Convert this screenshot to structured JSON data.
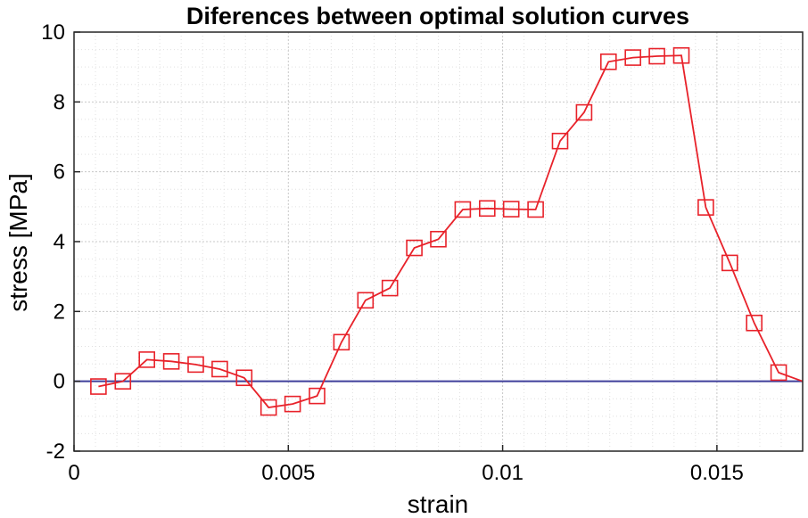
{
  "chart_data": {
    "type": "line",
    "title": "Diferences between optimal solution curves",
    "xlabel": "strain",
    "ylabel": "stress [MPa]",
    "xlim": [
      0,
      0.017
    ],
    "ylim": [
      -2,
      10
    ],
    "x_ticks": [
      0,
      0.005,
      0.01,
      0.015
    ],
    "x_tick_labels": [
      "0",
      "0.005",
      "0.01",
      "0.015"
    ],
    "y_ticks": [
      -2,
      0,
      2,
      4,
      6,
      8,
      10
    ],
    "y_tick_labels": [
      "-2",
      "0",
      "2",
      "4",
      "6",
      "8",
      "10"
    ],
    "grid": true,
    "minor_grid": true,
    "baseline": {
      "y": 0,
      "color": "#3f3f9a"
    },
    "series": [
      {
        "color": "#e8222a",
        "marker": "square",
        "points": [
          [
            0.00057,
            -0.15
          ],
          [
            0.00114,
            0.0
          ],
          [
            0.0017,
            0.62
          ],
          [
            0.00227,
            0.57
          ],
          [
            0.00284,
            0.48
          ],
          [
            0.0034,
            0.35
          ],
          [
            0.00397,
            0.1
          ],
          [
            0.00454,
            -0.75
          ],
          [
            0.0051,
            -0.65
          ],
          [
            0.00567,
            -0.42
          ],
          [
            0.00624,
            1.12
          ],
          [
            0.0068,
            2.32
          ],
          [
            0.00737,
            2.67
          ],
          [
            0.00794,
            3.82
          ],
          [
            0.0085,
            4.07
          ],
          [
            0.00907,
            4.92
          ],
          [
            0.00964,
            4.95
          ],
          [
            0.0102,
            4.93
          ],
          [
            0.01077,
            4.92
          ],
          [
            0.01134,
            6.88
          ],
          [
            0.0119,
            7.7
          ],
          [
            0.01247,
            9.15
          ],
          [
            0.01304,
            9.27
          ],
          [
            0.0136,
            9.31
          ],
          [
            0.01417,
            9.33
          ],
          [
            0.01474,
            4.98
          ],
          [
            0.0153,
            3.39
          ],
          [
            0.01587,
            1.67
          ],
          [
            0.01644,
            0.25
          ],
          [
            0.017,
            0.0
          ]
        ],
        "marker_count": 29
      }
    ]
  }
}
